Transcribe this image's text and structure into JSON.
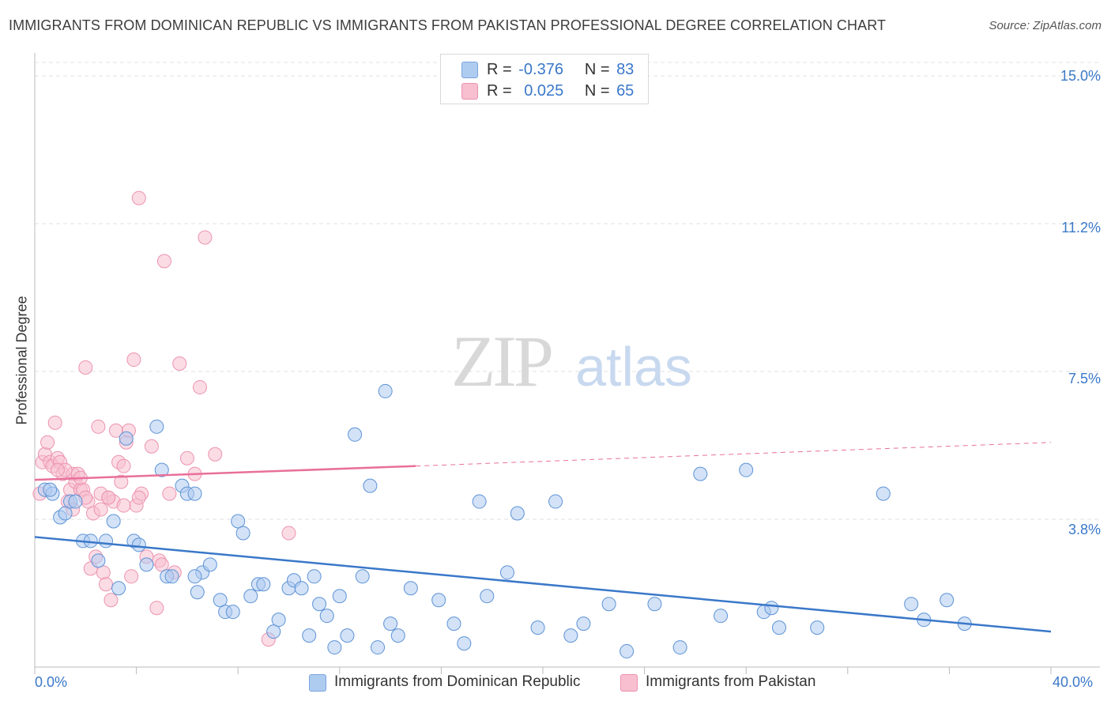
{
  "title": "IMMIGRANTS FROM DOMINICAN REPUBLIC VS IMMIGRANTS FROM PAKISTAN PROFESSIONAL DEGREE CORRELATION CHART",
  "source": "Source: ZipAtlas.com",
  "watermark": {
    "zip": "ZIP",
    "atlas": "atlas"
  },
  "legend": {
    "blue": {
      "r_label": "R =",
      "r_value": "-0.376",
      "n_label": "N =",
      "n_value": "83",
      "color": "#aecbf0"
    },
    "pink": {
      "r_label": "R =",
      "r_value": "0.025",
      "n_label": "N =",
      "n_value": "65",
      "color": "#f7bfd0"
    }
  },
  "bottom_legend": {
    "blue_label": "Immigrants from Dominican Republic",
    "pink_label": "Immigrants from Pakistan"
  },
  "chart_data": {
    "type": "scatter",
    "title": "IMMIGRANTS FROM DOMINICAN REPUBLIC VS IMMIGRANTS FROM PAKISTAN PROFESSIONAL DEGREE CORRELATION CHART",
    "xlabel": "",
    "ylabel": "Professional Degree",
    "xlim": [
      0,
      40
    ],
    "ylim": [
      0,
      15
    ],
    "x_tick_labels": [
      "0.0%",
      "40.0%"
    ],
    "y_ticks": [
      3.75,
      7.5,
      11.25,
      15.0
    ],
    "y_tick_labels": [
      "3.8%",
      "7.5%",
      "11.2%",
      "15.0%"
    ],
    "grid": true,
    "series": [
      {
        "name": "Immigrants from Dominican Republic",
        "color": "#3a78c9",
        "fill": "#aecbf0",
        "trend": {
          "x": [
            0,
            40
          ],
          "y": [
            3.3,
            0.9
          ]
        },
        "points": [
          [
            0.4,
            4.5
          ],
          [
            0.7,
            4.4
          ],
          [
            1.0,
            3.8
          ],
          [
            1.2,
            3.9
          ],
          [
            1.4,
            4.2
          ],
          [
            1.6,
            4.2
          ],
          [
            1.9,
            3.2
          ],
          [
            2.2,
            3.2
          ],
          [
            2.5,
            2.7
          ],
          [
            2.8,
            3.2
          ],
          [
            3.1,
            3.7
          ],
          [
            3.3,
            2.0
          ],
          [
            3.6,
            5.8
          ],
          [
            3.9,
            3.2
          ],
          [
            4.1,
            3.1
          ],
          [
            4.4,
            2.6
          ],
          [
            4.8,
            6.1
          ],
          [
            5.0,
            5.0
          ],
          [
            5.2,
            2.3
          ],
          [
            5.4,
            2.3
          ],
          [
            5.8,
            4.6
          ],
          [
            6.0,
            4.4
          ],
          [
            6.3,
            4.4
          ],
          [
            6.4,
            1.9
          ],
          [
            6.6,
            2.4
          ],
          [
            6.9,
            2.6
          ],
          [
            7.3,
            1.7
          ],
          [
            7.5,
            1.4
          ],
          [
            7.8,
            1.4
          ],
          [
            8.0,
            3.7
          ],
          [
            8.2,
            3.4
          ],
          [
            8.5,
            1.8
          ],
          [
            8.8,
            2.1
          ],
          [
            9.0,
            2.1
          ],
          [
            9.4,
            0.9
          ],
          [
            9.6,
            1.2
          ],
          [
            10.0,
            2.0
          ],
          [
            10.2,
            2.2
          ],
          [
            10.5,
            2.0
          ],
          [
            10.8,
            0.8
          ],
          [
            11.0,
            2.3
          ],
          [
            11.2,
            1.6
          ],
          [
            11.5,
            1.3
          ],
          [
            11.8,
            0.5
          ],
          [
            12.0,
            1.8
          ],
          [
            12.3,
            0.8
          ],
          [
            12.6,
            5.9
          ],
          [
            12.9,
            2.3
          ],
          [
            13.2,
            4.6
          ],
          [
            13.5,
            0.5
          ],
          [
            13.8,
            7.0
          ],
          [
            14.0,
            1.1
          ],
          [
            14.3,
            0.8
          ],
          [
            14.8,
            2.0
          ],
          [
            15.9,
            1.7
          ],
          [
            16.5,
            1.1
          ],
          [
            16.9,
            0.6
          ],
          [
            17.5,
            4.2
          ],
          [
            17.8,
            1.8
          ],
          [
            18.6,
            2.4
          ],
          [
            19.0,
            3.9
          ],
          [
            19.8,
            1.0
          ],
          [
            20.5,
            4.2
          ],
          [
            21.1,
            0.8
          ],
          [
            21.6,
            1.1
          ],
          [
            22.6,
            1.6
          ],
          [
            23.3,
            0.4
          ],
          [
            24.4,
            1.6
          ],
          [
            25.4,
            0.5
          ],
          [
            26.2,
            4.9
          ],
          [
            27.0,
            1.3
          ],
          [
            28.0,
            5.0
          ],
          [
            28.7,
            1.4
          ],
          [
            29.0,
            1.5
          ],
          [
            29.3,
            1.0
          ],
          [
            30.8,
            1.0
          ],
          [
            33.4,
            4.4
          ],
          [
            34.5,
            1.6
          ],
          [
            35.0,
            1.2
          ],
          [
            35.9,
            1.7
          ],
          [
            36.6,
            1.1
          ],
          [
            0.6,
            4.5
          ],
          [
            6.3,
            2.3
          ]
        ]
      },
      {
        "name": "Immigrants from Pakistan",
        "color": "#e8709a",
        "fill": "#f7bfd0",
        "trend": {
          "x": [
            0,
            15
          ],
          "y": [
            4.75,
            5.1
          ]
        },
        "trend_ext": {
          "x": [
            15,
            40
          ],
          "y": [
            5.1,
            5.7
          ]
        },
        "points": [
          [
            0.2,
            4.4
          ],
          [
            0.3,
            5.2
          ],
          [
            0.4,
            5.4
          ],
          [
            0.5,
            5.7
          ],
          [
            0.6,
            5.2
          ],
          [
            0.7,
            5.1
          ],
          [
            0.8,
            6.2
          ],
          [
            0.9,
            5.3
          ],
          [
            1.0,
            5.2
          ],
          [
            1.1,
            4.9
          ],
          [
            1.3,
            4.2
          ],
          [
            1.4,
            4.5
          ],
          [
            1.5,
            4.9
          ],
          [
            1.6,
            4.7
          ],
          [
            1.7,
            4.9
          ],
          [
            1.8,
            4.5
          ],
          [
            1.9,
            4.5
          ],
          [
            2.0,
            7.6
          ],
          [
            2.1,
            4.2
          ],
          [
            2.2,
            2.5
          ],
          [
            2.3,
            3.9
          ],
          [
            2.4,
            2.8
          ],
          [
            2.5,
            6.1
          ],
          [
            2.6,
            4.0
          ],
          [
            2.7,
            2.4
          ],
          [
            2.8,
            2.1
          ],
          [
            2.9,
            4.3
          ],
          [
            3.0,
            1.7
          ],
          [
            3.1,
            4.2
          ],
          [
            3.2,
            6.0
          ],
          [
            3.3,
            5.2
          ],
          [
            3.4,
            4.7
          ],
          [
            3.5,
            5.1
          ],
          [
            3.6,
            5.7
          ],
          [
            3.7,
            6.0
          ],
          [
            3.8,
            2.3
          ],
          [
            3.9,
            7.8
          ],
          [
            4.0,
            4.1
          ],
          [
            4.1,
            11.9
          ],
          [
            4.2,
            4.4
          ],
          [
            4.4,
            2.8
          ],
          [
            4.6,
            5.6
          ],
          [
            4.8,
            1.5
          ],
          [
            4.9,
            2.7
          ],
          [
            5.0,
            2.6
          ],
          [
            5.1,
            10.3
          ],
          [
            5.3,
            4.4
          ],
          [
            5.5,
            2.4
          ],
          [
            5.7,
            7.7
          ],
          [
            6.0,
            5.3
          ],
          [
            6.3,
            4.9
          ],
          [
            6.5,
            7.1
          ],
          [
            6.7,
            10.9
          ],
          [
            7.1,
            5.4
          ],
          [
            9.2,
            0.7
          ],
          [
            10.0,
            3.4
          ],
          [
            2.0,
            4.3
          ],
          [
            1.2,
            5.0
          ],
          [
            0.9,
            5.0
          ],
          [
            1.5,
            4.0
          ],
          [
            2.6,
            4.4
          ],
          [
            3.5,
            4.1
          ],
          [
            1.8,
            4.8
          ],
          [
            4.1,
            4.3
          ],
          [
            2.9,
            4.3
          ]
        ]
      }
    ]
  }
}
